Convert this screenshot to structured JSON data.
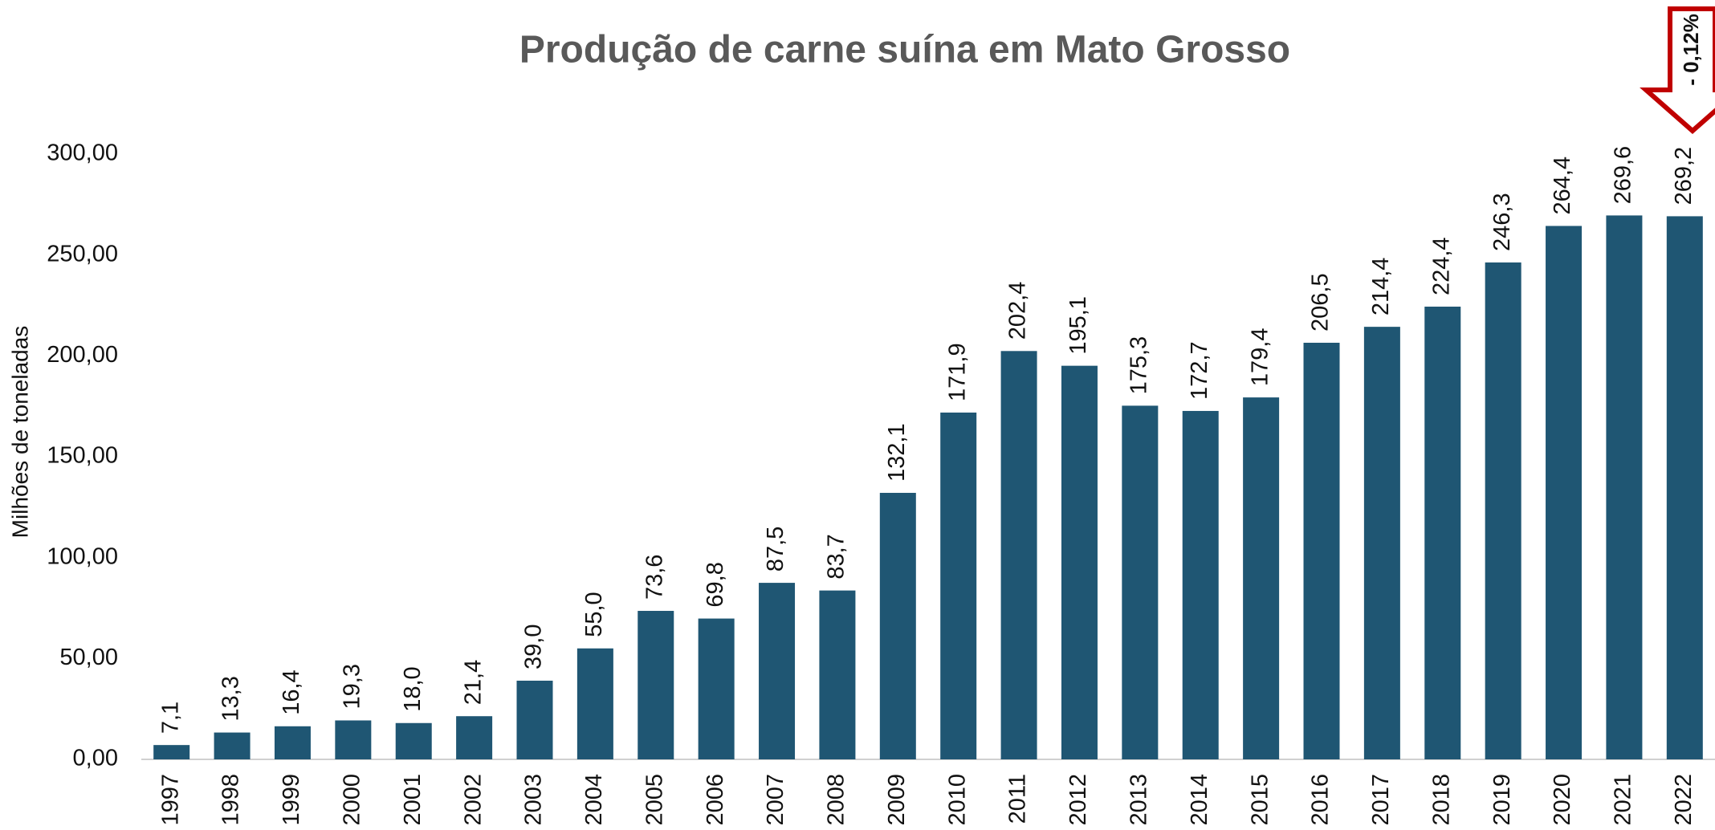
{
  "chart_data": {
    "type": "bar",
    "title": "Produção de carne suína em Mato Grosso",
    "y_label": "Milhões de toneladas",
    "annotation": "- 0,12%",
    "categories": [
      "1997",
      "1998",
      "1999",
      "2000",
      "2001",
      "2002",
      "2003",
      "2004",
      "2005",
      "2006",
      "2007",
      "2008",
      "2009",
      "2010",
      "2011",
      "2012",
      "2013",
      "2014",
      "2015",
      "2016",
      "2017",
      "2018",
      "2019",
      "2020",
      "2021",
      "2022"
    ],
    "values": [
      7.1,
      13.3,
      16.4,
      19.3,
      18.0,
      21.4,
      39.0,
      55.0,
      73.6,
      69.8,
      87.5,
      83.7,
      132.1,
      171.9,
      202.4,
      195.1,
      175.3,
      172.7,
      179.4,
      206.5,
      214.4,
      224.4,
      246.3,
      264.4,
      269.6,
      269.2
    ],
    "value_labels": [
      "7,1",
      "13,3",
      "16,4",
      "19,3",
      "18,0",
      "21,4",
      "39,0",
      "55,0",
      "73,6",
      "69,8",
      "87,5",
      "83,7",
      "132,1",
      "171,9",
      "202,4",
      "195,1",
      "175,3",
      "172,7",
      "179,4",
      "206,5",
      "214,4",
      "224,4",
      "246,3",
      "264,4",
      "269,6",
      "269,2"
    ],
    "color": "#1f5673",
    "ylim": [
      0,
      300
    ],
    "yticks": [
      {
        "value": 0,
        "label": "0,00"
      },
      {
        "value": 50,
        "label": "50,00"
      },
      {
        "value": 100,
        "label": "100,00"
      },
      {
        "value": 150,
        "label": "150,00"
      },
      {
        "value": 200,
        "label": "200,00"
      },
      {
        "value": 250,
        "label": "250,00"
      },
      {
        "value": 300,
        "label": "300,00"
      }
    ],
    "grid": false
  }
}
